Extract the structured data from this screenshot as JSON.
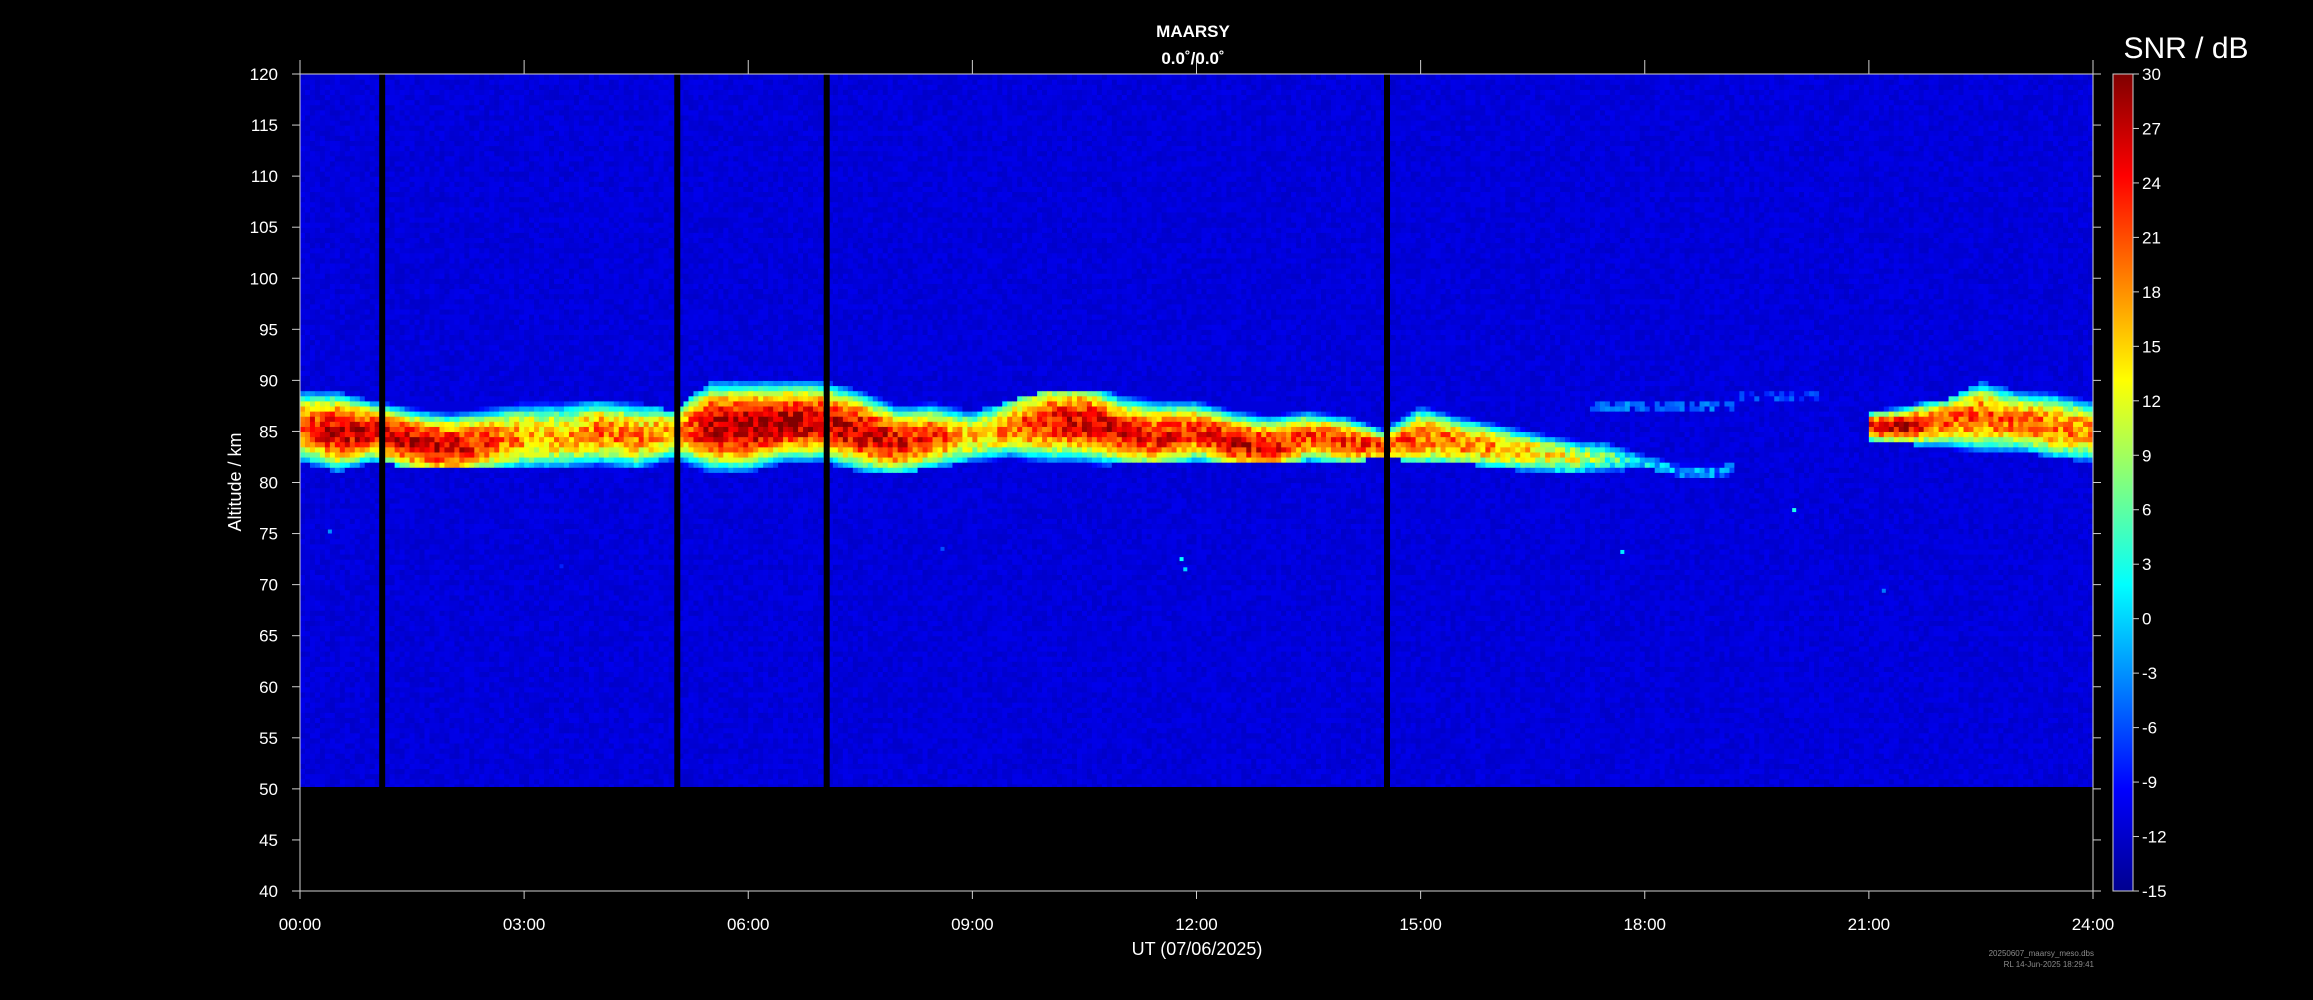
{
  "chart_data": {
    "type": "heatmap",
    "title": "MAARSY",
    "subtitle": "0.0˚/0.0˚",
    "xlabel": "UT (07/06/2025)",
    "ylabel": "Altitude / km",
    "xlim": [
      0,
      24
    ],
    "ylim": [
      40,
      120
    ],
    "x_tick_labels": [
      "00:00",
      "03:00",
      "06:00",
      "09:00",
      "12:00",
      "15:00",
      "18:00",
      "21:00",
      "24:00"
    ],
    "x_ticks_hours": [
      0,
      3,
      6,
      9,
      12,
      15,
      18,
      21,
      24
    ],
    "y_ticks": [
      40,
      45,
      50,
      55,
      60,
      65,
      70,
      75,
      80,
      85,
      90,
      95,
      100,
      105,
      110,
      115,
      120
    ],
    "data_altitude_range": [
      50,
      120
    ],
    "background_snr": -11,
    "colorbar": {
      "label": "SNR / dB",
      "range": [
        -15,
        30
      ],
      "ticks": [
        -15,
        -12,
        -9,
        -6,
        -3,
        0,
        3,
        6,
        9,
        12,
        15,
        18,
        21,
        24,
        27,
        30
      ],
      "colormap": "jet"
    },
    "data_gaps_hours": [
      1.1,
      5.05,
      7.05,
      14.55
    ],
    "echo_layer": [
      {
        "t": 0.0,
        "top": 89,
        "bottom": 82,
        "peak_alt": 85.5,
        "peak_snr": 22
      },
      {
        "t": 0.5,
        "top": 89,
        "bottom": 81,
        "peak_alt": 85,
        "peak_snr": 27
      },
      {
        "t": 1.0,
        "top": 88,
        "bottom": 82,
        "peak_alt": 85,
        "peak_snr": 26
      },
      {
        "t": 1.5,
        "top": 88,
        "bottom": 81.5,
        "peak_alt": 84,
        "peak_snr": 27
      },
      {
        "t": 2.0,
        "top": 88,
        "bottom": 81.5,
        "peak_alt": 83.5,
        "peak_snr": 27
      },
      {
        "t": 2.5,
        "top": 88,
        "bottom": 81.5,
        "peak_alt": 84,
        "peak_snr": 22
      },
      {
        "t": 3.0,
        "top": 88,
        "bottom": 81.5,
        "peak_alt": 84.5,
        "peak_snr": 18
      },
      {
        "t": 3.5,
        "top": 88,
        "bottom": 81.5,
        "peak_alt": 84.5,
        "peak_snr": 16
      },
      {
        "t": 4.0,
        "top": 88,
        "bottom": 81.5,
        "peak_alt": 85,
        "peak_snr": 20
      },
      {
        "t": 4.5,
        "top": 88,
        "bottom": 81.5,
        "peak_alt": 84.5,
        "peak_snr": 19
      },
      {
        "t": 5.0,
        "top": 87,
        "bottom": 81.5,
        "peak_alt": 85,
        "peak_snr": 17
      },
      {
        "t": 5.5,
        "top": 90,
        "bottom": 81,
        "peak_alt": 85.5,
        "peak_snr": 28
      },
      {
        "t": 6.0,
        "top": 90,
        "bottom": 81,
        "peak_alt": 85.5,
        "peak_snr": 29
      },
      {
        "t": 6.5,
        "top": 90,
        "bottom": 82,
        "peak_alt": 86,
        "peak_snr": 28
      },
      {
        "t": 7.0,
        "top": 90,
        "bottom": 82,
        "peak_alt": 86,
        "peak_snr": 27
      },
      {
        "t": 7.5,
        "top": 89,
        "bottom": 81,
        "peak_alt": 85,
        "peak_snr": 27
      },
      {
        "t": 8.0,
        "top": 88,
        "bottom": 81,
        "peak_alt": 84,
        "peak_snr": 25
      },
      {
        "t": 8.5,
        "top": 88,
        "bottom": 81.5,
        "peak_alt": 84.5,
        "peak_snr": 22
      },
      {
        "t": 9.0,
        "top": 87,
        "bottom": 82,
        "peak_alt": 84.5,
        "peak_snr": 15
      },
      {
        "t": 9.5,
        "top": 88,
        "bottom": 82,
        "peak_alt": 85.5,
        "peak_snr": 20
      },
      {
        "t": 10.0,
        "top": 89,
        "bottom": 81,
        "peak_alt": 86,
        "peak_snr": 24
      },
      {
        "t": 10.5,
        "top": 89,
        "bottom": 81,
        "peak_alt": 86,
        "peak_snr": 26
      },
      {
        "t": 11.0,
        "top": 89,
        "bottom": 82,
        "peak_alt": 85,
        "peak_snr": 25
      },
      {
        "t": 11.5,
        "top": 89,
        "bottom": 82,
        "peak_alt": 84.5,
        "peak_snr": 24
      },
      {
        "t": 12.0,
        "top": 88,
        "bottom": 82,
        "peak_alt": 85,
        "peak_snr": 23
      },
      {
        "t": 12.5,
        "top": 88,
        "bottom": 82,
        "peak_alt": 84,
        "peak_snr": 26
      },
      {
        "t": 13.0,
        "top": 88,
        "bottom": 82,
        "peak_alt": 83.5,
        "peak_snr": 25
      },
      {
        "t": 13.5,
        "top": 87,
        "bottom": 82,
        "peak_alt": 84.5,
        "peak_snr": 22
      },
      {
        "t": 14.0,
        "top": 87,
        "bottom": 82,
        "peak_alt": 84,
        "peak_snr": 23
      },
      {
        "t": 14.5,
        "top": 86,
        "bottom": 82.5,
        "peak_alt": 83.5,
        "peak_snr": 22
      },
      {
        "t": 15.0,
        "top": 88,
        "bottom": 82,
        "peak_alt": 84.5,
        "peak_snr": 20
      },
      {
        "t": 15.5,
        "top": 87,
        "bottom": 82,
        "peak_alt": 84,
        "peak_snr": 20
      },
      {
        "t": 16.0,
        "top": 86,
        "bottom": 81.5,
        "peak_alt": 83.5,
        "peak_snr": 18
      },
      {
        "t": 16.5,
        "top": 85,
        "bottom": 81,
        "peak_alt": 83,
        "peak_snr": 15
      },
      {
        "t": 17.0,
        "top": 84.5,
        "bottom": 81,
        "peak_alt": 82.5,
        "peak_snr": 12
      },
      {
        "t": 17.5,
        "top": 84,
        "bottom": 81,
        "peak_alt": 82.5,
        "peak_snr": 6
      },
      {
        "t": 18.0,
        "top": 83,
        "bottom": 81.5,
        "peak_alt": 82,
        "peak_snr": 1
      },
      {
        "t": 18.5,
        "top": 82,
        "bottom": 80.5,
        "peak_alt": 81,
        "peak_snr": -2
      },
      {
        "t": 19.0,
        "top": 82,
        "bottom": 80.5,
        "peak_alt": 81,
        "peak_snr": -4
      },
      {
        "t": 21.0,
        "top": 87,
        "bottom": 84,
        "peak_alt": 85.5,
        "peak_snr": 24
      },
      {
        "t": 21.5,
        "top": 88,
        "bottom": 84,
        "peak_alt": 85.5,
        "peak_snr": 27
      },
      {
        "t": 22.0,
        "top": 88,
        "bottom": 83,
        "peak_alt": 86,
        "peak_snr": 20
      },
      {
        "t": 22.5,
        "top": 90,
        "bottom": 83,
        "peak_alt": 86.5,
        "peak_snr": 21
      },
      {
        "t": 23.0,
        "top": 89,
        "bottom": 83,
        "peak_alt": 86,
        "peak_snr": 20
      },
      {
        "t": 23.5,
        "top": 89,
        "bottom": 82.5,
        "peak_alt": 85.5,
        "peak_snr": 20
      },
      {
        "t": 24.0,
        "top": 88,
        "bottom": 82,
        "peak_alt": 85,
        "peak_snr": 18
      }
    ],
    "upper_patches": [
      {
        "t0": 17.3,
        "t1": 19.3,
        "alt": 87.5,
        "snr": -4
      },
      {
        "t0": 19.3,
        "t1": 20.3,
        "alt": 88.5,
        "snr": -6
      }
    ],
    "isolated_echoes": [
      {
        "t": 11.8,
        "alt": 72.5,
        "snr": 2
      },
      {
        "t": 11.85,
        "alt": 71.5,
        "snr": 0
      },
      {
        "t": 0.4,
        "alt": 75.2,
        "snr": -3
      },
      {
        "t": 17.7,
        "alt": 73.2,
        "snr": 1
      },
      {
        "t": 20.0,
        "alt": 77.3,
        "snr": 3
      },
      {
        "t": 21.2,
        "alt": 69.4,
        "snr": -4
      },
      {
        "t": 8.6,
        "alt": 73.5,
        "snr": -6
      },
      {
        "t": 3.5,
        "alt": 71.8,
        "snr": -8
      }
    ]
  },
  "footer": {
    "filename": "20250607_maarsy_meso.dbs",
    "stamp": "RL  14-Jun-2025 18:29:41"
  }
}
